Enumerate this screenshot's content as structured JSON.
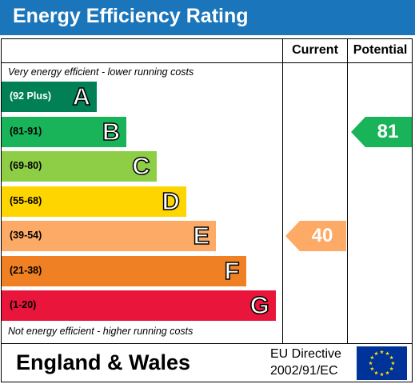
{
  "title": "Energy Efficiency Rating",
  "columns": {
    "current": "Current",
    "potential": "Potential"
  },
  "top_note": "Very energy efficient - lower running costs",
  "bottom_note": "Not energy efficient - higher running costs",
  "footer": {
    "region": "England & Wales",
    "directive_line1": "EU Directive",
    "directive_line2": "2002/91/EC"
  },
  "colors": {
    "title_bar": "#1a75bb",
    "A": "#008054",
    "B": "#19b459",
    "C": "#8dce46",
    "D": "#ffd500",
    "E": "#fcaa65",
    "F": "#ef8023",
    "G": "#e9153b"
  },
  "chart_data": {
    "type": "bar",
    "categories": [
      "A",
      "B",
      "C",
      "D",
      "E",
      "F",
      "G"
    ],
    "ranges": [
      "(92 Plus)",
      "(81-91)",
      "(69-80)",
      "(55-68)",
      "(39-54)",
      "(21-38)",
      "(1-20)"
    ],
    "current": {
      "value": 40,
      "band": "E"
    },
    "potential": {
      "value": 81,
      "band": "B"
    }
  }
}
